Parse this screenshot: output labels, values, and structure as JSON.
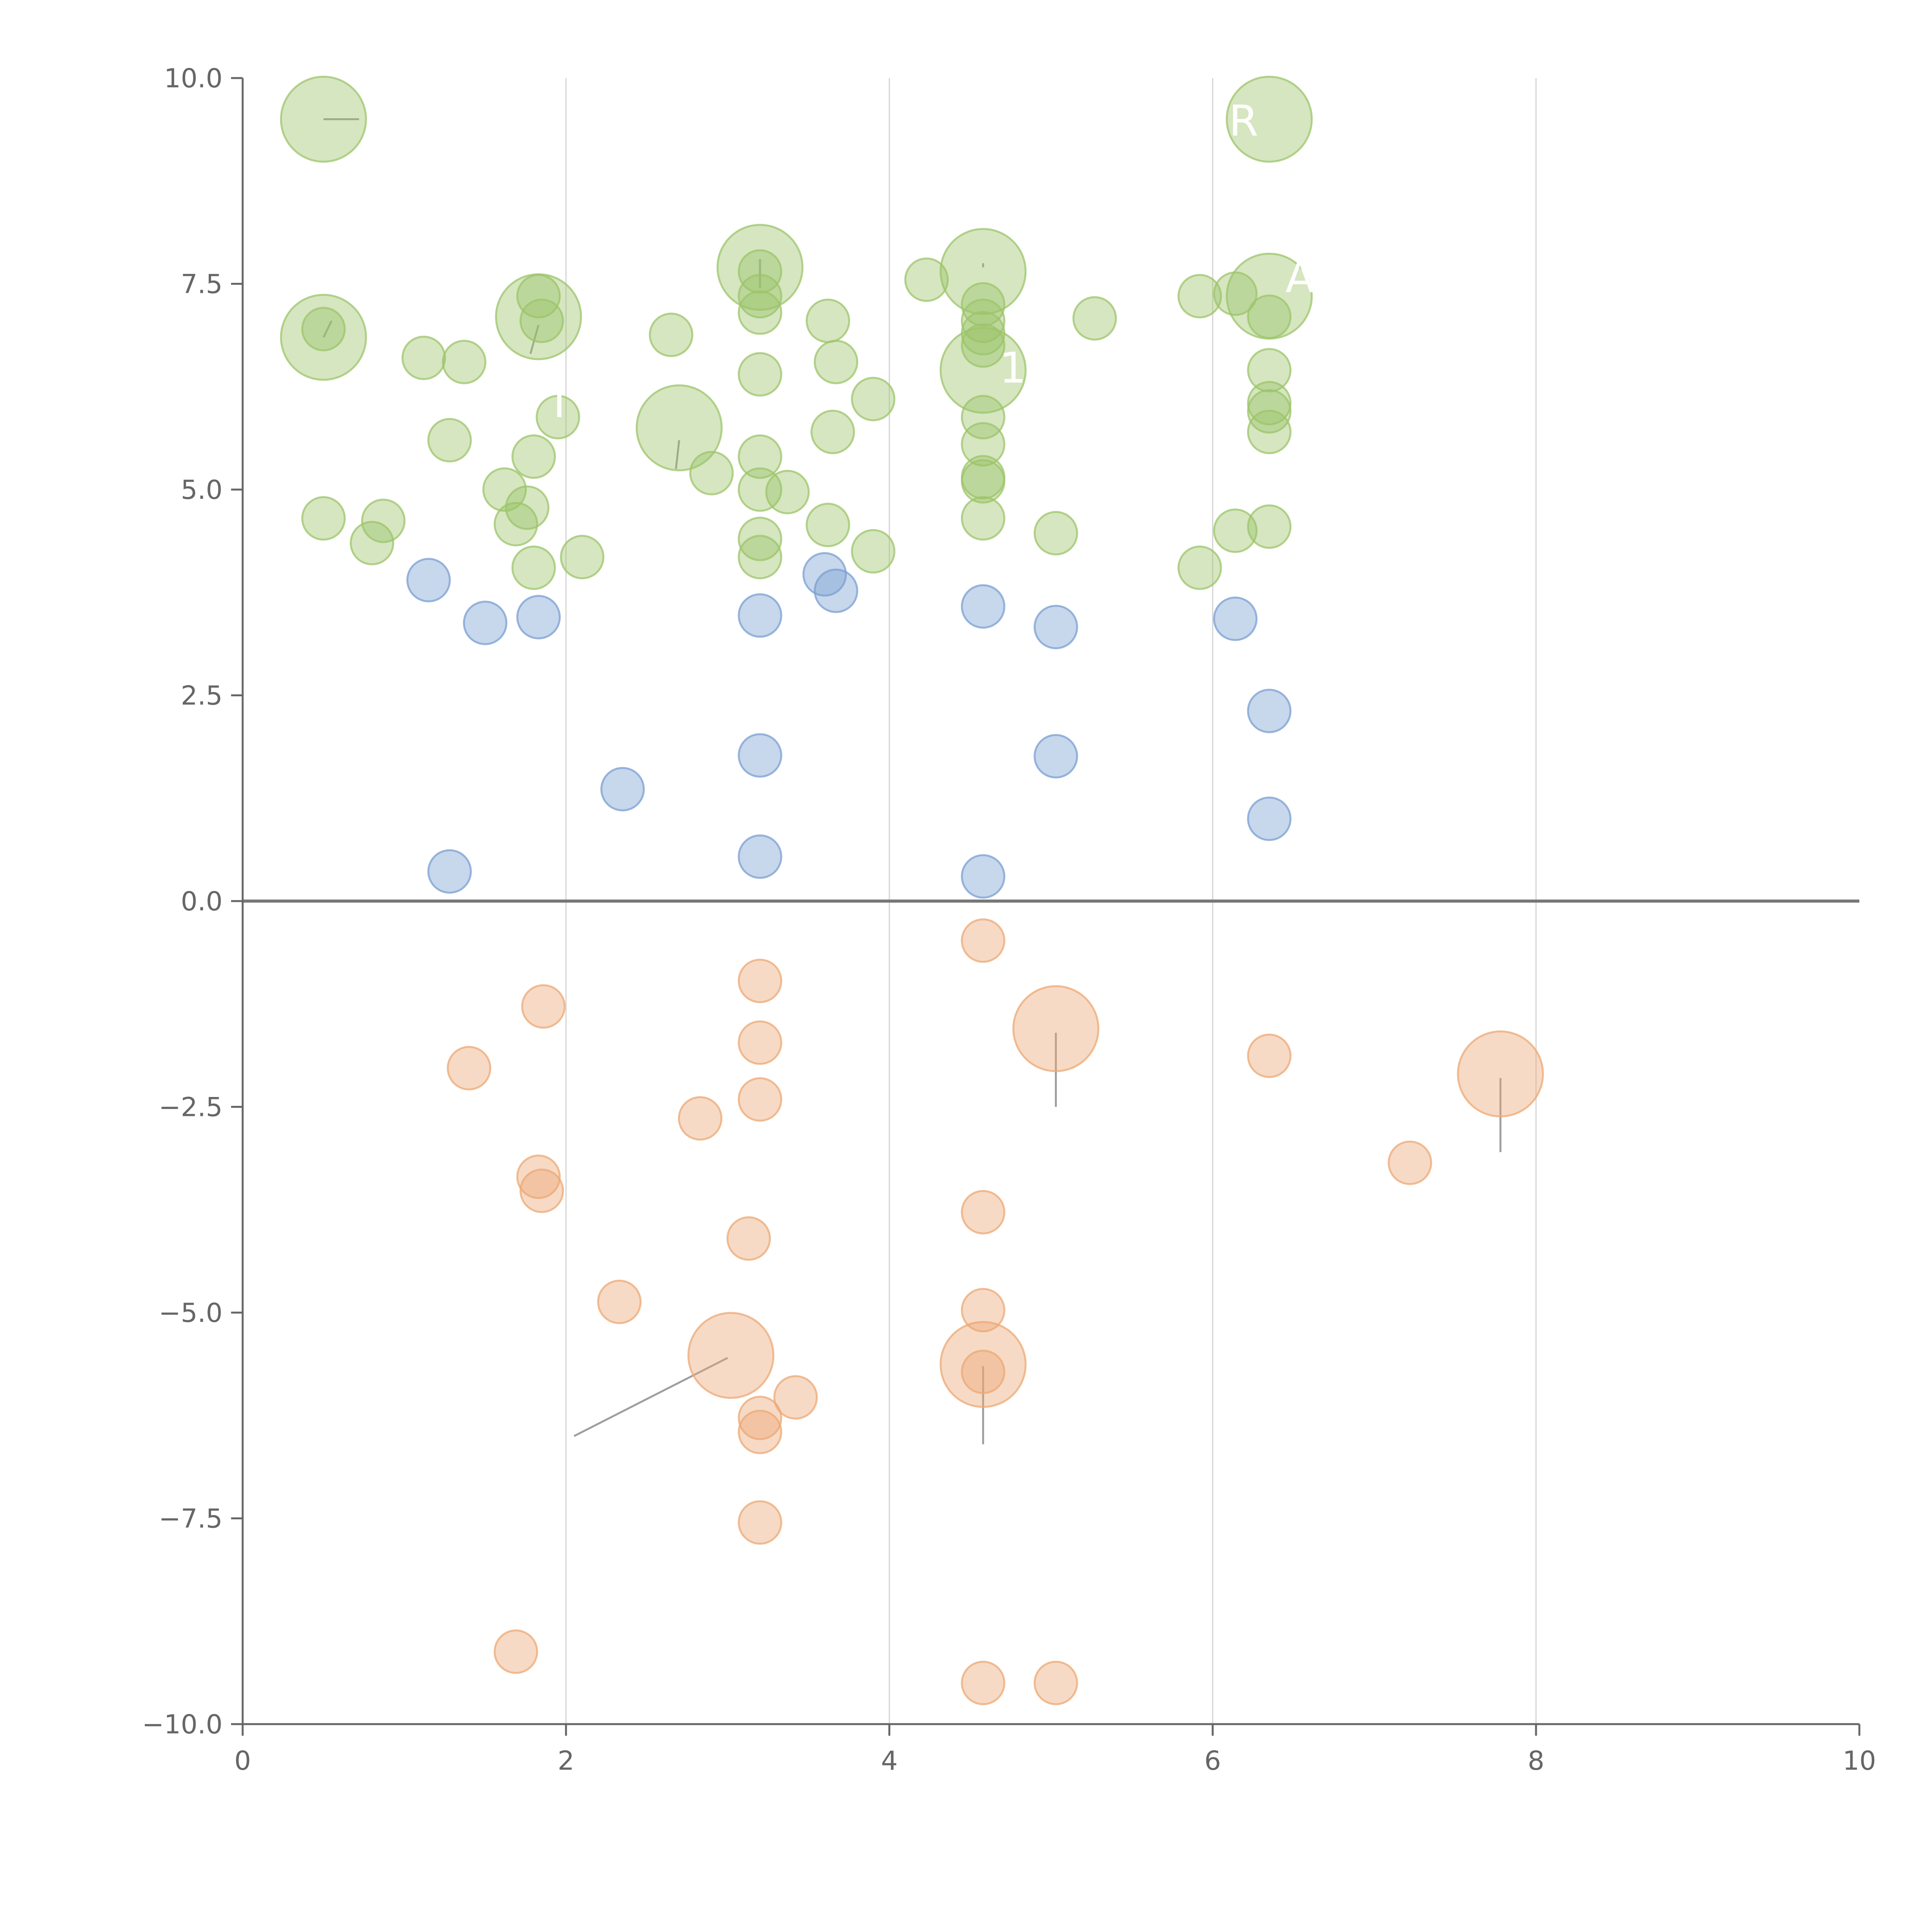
{
  "chart_data": {
    "type": "scatter",
    "title": "",
    "xlabel": "",
    "ylabel": "",
    "xlim": [
      0,
      10
    ],
    "ylim": [
      -10,
      10
    ],
    "x_ticks": [
      0,
      2,
      4,
      6,
      8,
      10
    ],
    "y_ticks": [
      -10,
      -7.5,
      -5,
      -2.5,
      0,
      2.5,
      5,
      7.5,
      10
    ],
    "x_tick_labels": [
      "0",
      "2",
      "4",
      "6",
      "8",
      "10"
    ],
    "y_tick_labels": [
      "−10.0",
      "−7.5",
      "−5.0",
      "−2.5",
      "0.0",
      "2.5",
      "5.0",
      "7.5",
      "10.0"
    ],
    "grid": "vertical",
    "series": [
      {
        "name": "green",
        "color": "#9cc46a",
        "points": [
          [
            0.5,
            9.5,
            2
          ],
          [
            0.5,
            6.85,
            2
          ],
          [
            0.5,
            6.95,
            1
          ],
          [
            0.5,
            4.65,
            1
          ],
          [
            0.8,
            4.35,
            1
          ],
          [
            0.87,
            4.62,
            1
          ],
          [
            1.12,
            6.6,
            1
          ],
          [
            1.37,
            6.55,
            1
          ],
          [
            1.28,
            5.6,
            1
          ],
          [
            1.62,
            5.0,
            1
          ],
          [
            1.69,
            4.58,
            1
          ],
          [
            1.76,
            4.78,
            1
          ],
          [
            1.8,
            5.4,
            1
          ],
          [
            1.8,
            4.05,
            1
          ],
          [
            1.83,
            7.35,
            1
          ],
          [
            1.83,
            7.1,
            2
          ],
          [
            1.85,
            7.05,
            1
          ],
          [
            1.95,
            5.88,
            1
          ],
          [
            2.1,
            4.18,
            1
          ],
          [
            2.65,
            6.88,
            1
          ],
          [
            2.7,
            5.75,
            2
          ],
          [
            2.9,
            5.2,
            1
          ],
          [
            3.2,
            7.7,
            2
          ],
          [
            3.2,
            7.65,
            1
          ],
          [
            3.2,
            7.35,
            1
          ],
          [
            3.2,
            7.15,
            1
          ],
          [
            3.2,
            6.4,
            1
          ],
          [
            3.2,
            5.4,
            1
          ],
          [
            3.2,
            5.0,
            1
          ],
          [
            3.2,
            4.4,
            1
          ],
          [
            3.2,
            4.18,
            1
          ],
          [
            3.37,
            4.97,
            1
          ],
          [
            3.62,
            7.05,
            1
          ],
          [
            3.62,
            4.57,
            1
          ],
          [
            3.65,
            5.7,
            1
          ],
          [
            3.67,
            6.55,
            1
          ],
          [
            3.9,
            6.1,
            1
          ],
          [
            3.9,
            4.25,
            1
          ],
          [
            4.23,
            7.55,
            1
          ],
          [
            4.58,
            7.65,
            2
          ],
          [
            4.58,
            7.25,
            1
          ],
          [
            4.58,
            7.05,
            1
          ],
          [
            4.58,
            6.9,
            1
          ],
          [
            4.58,
            6.75,
            1
          ],
          [
            4.58,
            6.45,
            2
          ],
          [
            4.58,
            5.88,
            1
          ],
          [
            4.58,
            5.55,
            1
          ],
          [
            4.58,
            5.15,
            1
          ],
          [
            4.58,
            5.1,
            1
          ],
          [
            4.58,
            4.65,
            1
          ],
          [
            5.03,
            4.47,
            1
          ],
          [
            5.27,
            7.08,
            1
          ],
          [
            5.92,
            7.35,
            1
          ],
          [
            5.92,
            4.05,
            1
          ],
          [
            6.14,
            7.38,
            1
          ],
          [
            6.14,
            4.5,
            1
          ],
          [
            6.35,
            9.5,
            2
          ],
          [
            6.35,
            7.35,
            2
          ],
          [
            6.35,
            7.1,
            1
          ],
          [
            6.35,
            6.45,
            1
          ],
          [
            6.35,
            6.05,
            1
          ],
          [
            6.35,
            5.95,
            1
          ],
          [
            6.35,
            5.7,
            1
          ],
          [
            6.35,
            4.55,
            1
          ]
        ]
      },
      {
        "name": "blue",
        "color": "#7a9fd1",
        "points": [
          [
            1.15,
            3.9,
            1
          ],
          [
            1.5,
            3.38,
            1
          ],
          [
            1.83,
            3.45,
            1
          ],
          [
            1.28,
            0.36,
            1
          ],
          [
            2.35,
            1.36,
            1
          ],
          [
            3.2,
            3.47,
            1
          ],
          [
            3.2,
            1.77,
            1
          ],
          [
            3.2,
            0.54,
            1
          ],
          [
            3.6,
            3.97,
            1
          ],
          [
            3.67,
            3.77,
            1
          ],
          [
            4.58,
            3.58,
            1
          ],
          [
            4.58,
            0.3,
            1
          ],
          [
            5.03,
            3.33,
            1
          ],
          [
            5.03,
            1.76,
            1
          ],
          [
            6.14,
            3.43,
            1
          ],
          [
            6.35,
            2.31,
            1
          ],
          [
            6.35,
            1.0,
            1
          ]
        ]
      },
      {
        "name": "orange",
        "color": "#eca874",
        "points": [
          [
            1.4,
            -2.03,
            1
          ],
          [
            1.86,
            -1.28,
            1
          ],
          [
            1.83,
            -3.35,
            1
          ],
          [
            1.85,
            -3.52,
            1
          ],
          [
            1.69,
            -9.12,
            1
          ],
          [
            2.33,
            -4.87,
            1
          ],
          [
            2.83,
            -2.64,
            1
          ],
          [
            3.02,
            -5.52,
            2
          ],
          [
            3.13,
            -4.1,
            1
          ],
          [
            3.2,
            -0.97,
            1
          ],
          [
            3.2,
            -1.72,
            1
          ],
          [
            3.2,
            -2.41,
            1
          ],
          [
            3.2,
            -6.28,
            1
          ],
          [
            3.2,
            -6.45,
            1
          ],
          [
            3.2,
            -7.55,
            1
          ],
          [
            3.42,
            -6.03,
            1
          ],
          [
            4.58,
            -0.48,
            1
          ],
          [
            4.58,
            -3.78,
            1
          ],
          [
            4.58,
            -4.97,
            1
          ],
          [
            4.58,
            -5.63,
            2
          ],
          [
            4.58,
            -5.72,
            1
          ],
          [
            4.58,
            -9.5,
            1
          ],
          [
            5.03,
            -1.55,
            2
          ],
          [
            5.03,
            -9.5,
            1
          ],
          [
            6.35,
            -1.88,
            1
          ],
          [
            7.22,
            -3.18,
            1
          ],
          [
            7.78,
            -2.1,
            2
          ]
        ]
      }
    ],
    "size_radius_px": {
      "1": 55,
      "2": 110
    },
    "leader_lines": [
      {
        "from": [
          3.0,
          -5.55
        ],
        "to": [
          2.05,
          -6.5
        ]
      },
      {
        "from": [
          4.58,
          -5.65
        ],
        "to": [
          4.58,
          -6.6
        ]
      },
      {
        "from": [
          5.03,
          -1.6
        ],
        "to": [
          5.03,
          -2.5
        ]
      },
      {
        "from": [
          7.78,
          -2.15
        ],
        "to": [
          7.78,
          -3.05
        ]
      },
      {
        "from": [
          0.5,
          9.5
        ],
        "to": [
          0.72,
          9.5
        ]
      },
      {
        "from": [
          0.5,
          6.85
        ],
        "to": [
          0.55,
          7.05
        ]
      },
      {
        "from": [
          1.83,
          7.0
        ],
        "to": [
          1.78,
          6.65
        ]
      },
      {
        "from": [
          2.7,
          5.6
        ],
        "to": [
          2.68,
          5.25
        ]
      },
      {
        "from": [
          3.2,
          7.8
        ],
        "to": [
          3.2,
          7.45
        ]
      },
      {
        "from": [
          4.58,
          7.75
        ],
        "to": [
          4.58,
          7.7
        ]
      }
    ],
    "point_labels": [
      {
        "text": "R",
        "x": 6.1,
        "y": 9.3
      },
      {
        "text": "A",
        "x": 6.45,
        "y": 7.4
      },
      {
        "text": "1",
        "x": 4.68,
        "y": 6.3
      },
      {
        "text": "I",
        "x": 1.92,
        "y": 5.88
      }
    ]
  }
}
